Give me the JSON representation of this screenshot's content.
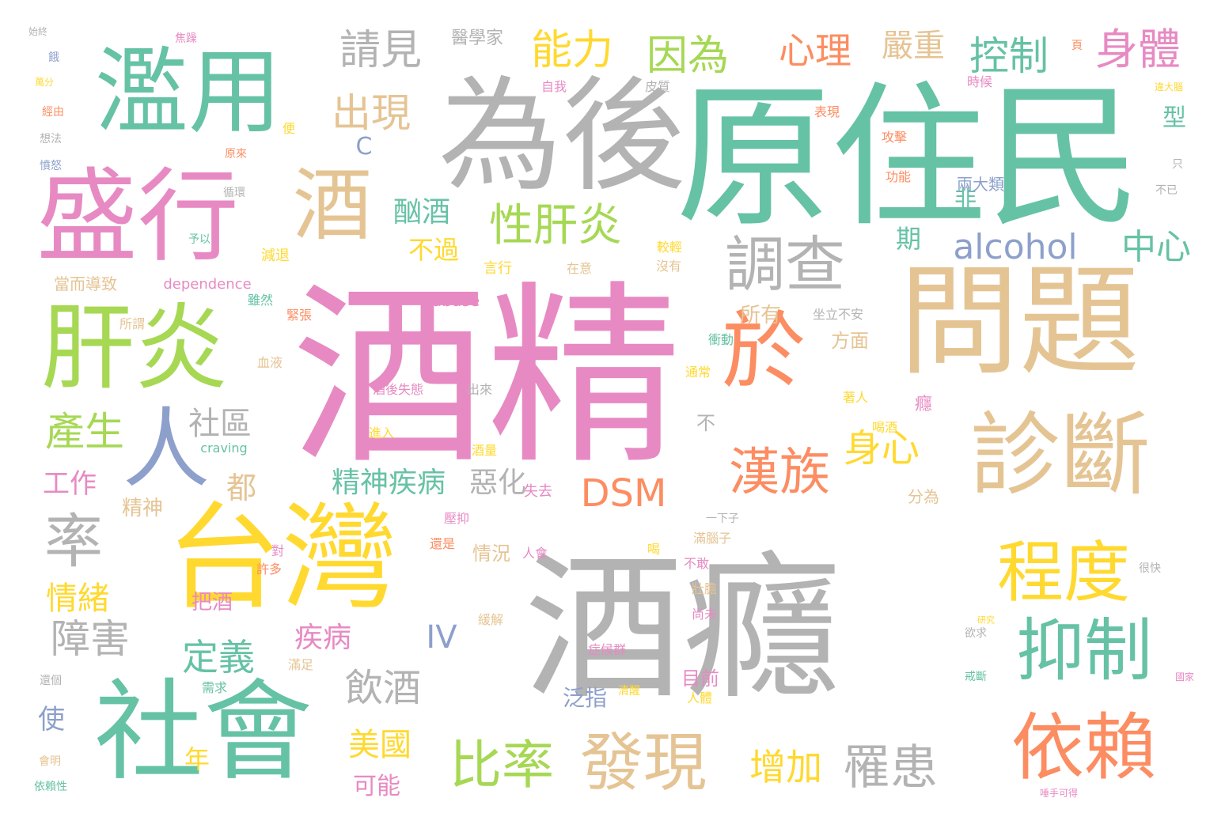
{
  "palette": {
    "gray": "#b3b3b3",
    "green": "#66c2a5",
    "pink": "#e78ac3",
    "tan": "#e5c494",
    "yellow": "#ffd92f",
    "orange": "#fc8d62",
    "lime": "#a6d854",
    "blue": "#8da0cb"
  },
  "words": [
    {
      "text": "酒癮",
      "color": "gray"
    },
    {
      "text": "酒精",
      "color": "pink"
    },
    {
      "text": "原住民",
      "color": "green"
    },
    {
      "text": "為後",
      "color": "gray"
    },
    {
      "text": "問題",
      "color": "tan"
    },
    {
      "text": "濫用",
      "color": "green"
    },
    {
      "text": "盛行",
      "color": "pink"
    },
    {
      "text": "台灣",
      "color": "yellow"
    },
    {
      "text": "社會",
      "color": "green"
    },
    {
      "text": "肝炎",
      "color": "lime"
    },
    {
      "text": "診斷",
      "color": "tan"
    },
    {
      "text": "於",
      "color": "orange"
    },
    {
      "text": "依賴",
      "color": "orange"
    },
    {
      "text": "酒",
      "color": "tan"
    },
    {
      "text": "調查",
      "color": "gray"
    },
    {
      "text": "程度",
      "color": "yellow"
    },
    {
      "text": "抑制",
      "color": "green"
    },
    {
      "text": "漢族",
      "color": "orange"
    },
    {
      "text": "發現",
      "color": "tan"
    },
    {
      "text": "人",
      "color": "blue"
    },
    {
      "text": "率",
      "color": "gray"
    },
    {
      "text": "性肝炎",
      "color": "lime"
    },
    {
      "text": "比率",
      "color": "lime"
    },
    {
      "text": "罹患",
      "color": "gray"
    },
    {
      "text": "請見",
      "color": "gray"
    },
    {
      "text": "能力",
      "color": "yellow"
    },
    {
      "text": "因為",
      "color": "lime"
    },
    {
      "text": "心理",
      "color": "orange"
    },
    {
      "text": "嚴重",
      "color": "tan"
    },
    {
      "text": "控制",
      "color": "green"
    },
    {
      "text": "身體",
      "color": "pink"
    },
    {
      "text": "出現",
      "color": "tan"
    },
    {
      "text": "alcohol",
      "color": "blue"
    },
    {
      "text": "中心",
      "color": "green"
    },
    {
      "text": "DSM",
      "color": "orange"
    },
    {
      "text": "身心",
      "color": "yellow"
    },
    {
      "text": "產生",
      "color": "lime"
    },
    {
      "text": "社區",
      "color": "gray"
    },
    {
      "text": "障害",
      "color": "gray"
    },
    {
      "text": "飲酒",
      "color": "gray"
    },
    {
      "text": "定義",
      "color": "green"
    },
    {
      "text": "增加",
      "color": "yellow"
    },
    {
      "text": "美國",
      "color": "yellow"
    },
    {
      "text": "酗酒",
      "color": "green"
    },
    {
      "text": "精神疾病",
      "color": "green"
    },
    {
      "text": "惡化",
      "color": "gray"
    },
    {
      "text": "情緒",
      "color": "yellow"
    },
    {
      "text": "工作",
      "color": "pink"
    },
    {
      "text": "疾病",
      "color": "pink"
    },
    {
      "text": "IV",
      "color": "blue"
    },
    {
      "text": "不過",
      "color": "yellow"
    },
    {
      "text": "都",
      "color": "tan"
    },
    {
      "text": "期",
      "color": "green"
    },
    {
      "text": "非",
      "color": "green"
    },
    {
      "text": "型",
      "color": "green"
    },
    {
      "text": "所有",
      "color": "tan"
    },
    {
      "text": "方面",
      "color": "tan"
    },
    {
      "text": "可能",
      "color": "pink"
    },
    {
      "text": "年",
      "color": "yellow"
    },
    {
      "text": "使",
      "color": "blue"
    },
    {
      "text": "精神",
      "color": "tan"
    },
    {
      "text": "把酒",
      "color": "pink"
    },
    {
      "text": "泛指",
      "color": "blue"
    },
    {
      "text": "目前",
      "color": "pink"
    },
    {
      "text": "情況",
      "color": "tan"
    },
    {
      "text": "分為",
      "color": "tan"
    },
    {
      "text": "兩大類",
      "color": "blue"
    },
    {
      "text": "醫學家",
      "color": "gray"
    },
    {
      "text": "C",
      "color": "blue"
    },
    {
      "text": "不",
      "color": "gray"
    },
    {
      "text": "癮",
      "color": "pink"
    },
    {
      "text": "abuse",
      "color": "pink"
    },
    {
      "text": "dependence",
      "color": "pink"
    },
    {
      "text": "craving",
      "color": "green"
    },
    {
      "text": "失去",
      "color": "pink"
    },
    {
      "text": "當而導致",
      "color": "tan"
    },
    {
      "text": "減退",
      "color": "yellow"
    },
    {
      "text": "時候",
      "color": "pink"
    },
    {
      "text": "表現",
      "color": "orange"
    },
    {
      "text": "攻擊",
      "color": "orange"
    },
    {
      "text": "功能",
      "color": "orange"
    },
    {
      "text": "皮質",
      "color": "gray"
    },
    {
      "text": "自我",
      "color": "pink"
    },
    {
      "text": "言行",
      "color": "yellow"
    },
    {
      "text": "在意",
      "color": "tan"
    },
    {
      "text": "沒有",
      "color": "tan"
    },
    {
      "text": "較輕",
      "color": "yellow"
    },
    {
      "text": "緊張",
      "color": "orange"
    },
    {
      "text": "所謂",
      "color": "tan"
    },
    {
      "text": "雖然",
      "color": "green"
    },
    {
      "text": "血液",
      "color": "tan"
    },
    {
      "text": "酒後失態",
      "color": "pink"
    },
    {
      "text": "出來",
      "color": "gray"
    },
    {
      "text": "進入",
      "color": "yellow"
    },
    {
      "text": "酒量",
      "color": "yellow"
    },
    {
      "text": "壓抑",
      "color": "pink"
    },
    {
      "text": "還是",
      "color": "orange"
    },
    {
      "text": "人會",
      "color": "pink"
    },
    {
      "text": "許多",
      "color": "orange"
    },
    {
      "text": "對",
      "color": "pink"
    },
    {
      "text": "喝",
      "color": "yellow"
    },
    {
      "text": "滿腦子",
      "color": "tan"
    },
    {
      "text": "不敢",
      "color": "pink"
    },
    {
      "text": "壯膽",
      "color": "tan"
    },
    {
      "text": "尚未",
      "color": "pink"
    },
    {
      "text": "一下子",
      "color": "gray"
    },
    {
      "text": "需求",
      "color": "green"
    },
    {
      "text": "滿足",
      "color": "tan"
    },
    {
      "text": "緩解",
      "color": "tan"
    },
    {
      "text": "症候群",
      "color": "pink"
    },
    {
      "text": "清醒",
      "color": "yellow"
    },
    {
      "text": "人體",
      "color": "yellow"
    },
    {
      "text": "通常",
      "color": "yellow"
    },
    {
      "text": "衝動",
      "color": "green"
    },
    {
      "text": "坐立不安",
      "color": "gray"
    },
    {
      "text": "喝酒",
      "color": "yellow"
    },
    {
      "text": "著人",
      "color": "yellow"
    },
    {
      "text": "循環",
      "color": "gray"
    },
    {
      "text": "予以",
      "color": "green"
    },
    {
      "text": "原來",
      "color": "orange"
    },
    {
      "text": "便",
      "color": "yellow"
    },
    {
      "text": "想法",
      "color": "gray"
    },
    {
      "text": "憤怒",
      "color": "blue"
    },
    {
      "text": "經由",
      "color": "orange"
    },
    {
      "text": "萬分",
      "color": "yellow"
    },
    {
      "text": "餓",
      "color": "blue"
    },
    {
      "text": "始終",
      "color": "gray"
    },
    {
      "text": "焦躁",
      "color": "pink"
    },
    {
      "text": "很快",
      "color": "gray"
    },
    {
      "text": "欲求",
      "color": "gray"
    },
    {
      "text": "戒斷",
      "color": "green"
    },
    {
      "text": "研究",
      "color": "yellow"
    },
    {
      "text": "國家",
      "color": "pink"
    },
    {
      "text": "唾手可得",
      "color": "pink"
    },
    {
      "text": "依賴性",
      "color": "green"
    },
    {
      "text": "會明",
      "color": "tan"
    },
    {
      "text": "還個",
      "color": "gray"
    },
    {
      "text": "不已",
      "color": "gray"
    },
    {
      "text": "只",
      "color": "gray"
    },
    {
      "text": "頁",
      "color": "orange"
    },
    {
      "text": "違大腦",
      "color": "yellow"
    }
  ]
}
